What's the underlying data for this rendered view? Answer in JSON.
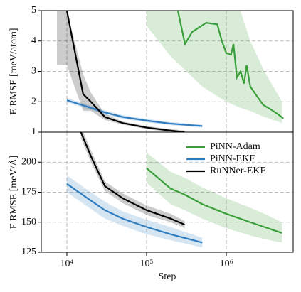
{
  "chart_data": [
    {
      "type": "line",
      "y_label": "E RMSE [meV/atom]",
      "log_x": true,
      "grid": true,
      "xlim": [
        4775,
        6900000
      ],
      "ylim": [
        1,
        5
      ],
      "yticks": [
        1,
        2,
        3,
        4,
        5
      ],
      "series": [
        {
          "color": "#3a9e3a",
          "x": [
            247000,
            303000,
            373000,
            560000,
            770000,
            880000,
            1000000,
            1150000,
            1230000,
            1360000,
            1510000,
            1670000,
            1800000,
            2000000,
            2400000,
            2900000,
            3600000,
            4400000,
            5200000
          ],
          "values": [
            5.0,
            3.9,
            4.3,
            4.6,
            4.55,
            4.0,
            3.6,
            3.55,
            3.9,
            2.8,
            3.0,
            2.6,
            3.2,
            2.5,
            2.2,
            1.9,
            1.75,
            1.6,
            1.45
          ],
          "band": {
            "x": [
              100000,
              200000,
              500000,
              1000000,
              1500000,
              2000000,
              3000000,
              5000000
            ],
            "lower": [
              4.5,
              3.5,
              2.5,
              2.0,
              1.8,
              1.7,
              1.5,
              1.3
            ],
            "upper": [
              5.0,
              5.0,
              5.0,
              5.0,
              5.0,
              4.0,
              3.0,
              2.0
            ]
          }
        },
        {
          "color": "#2f7dc0",
          "x": [
            10000,
            20000,
            30000,
            50000,
            100000,
            200000,
            500000
          ],
          "values": [
            2.05,
            1.8,
            1.65,
            1.5,
            1.38,
            1.28,
            1.2
          ],
          "band": {
            "x": [
              10000,
              20000,
              30000,
              50000,
              100000,
              200000,
              500000
            ],
            "lower": [
              1.98,
              1.73,
              1.58,
              1.44,
              1.32,
              1.23,
              1.15
            ],
            "upper": [
              2.12,
              1.87,
              1.72,
              1.56,
              1.44,
              1.33,
              1.25
            ]
          }
        },
        {
          "color": "#000000",
          "x": [
            10000,
            16000,
            20000,
            30000,
            50000,
            100000,
            200000,
            300000
          ],
          "values": [
            5.0,
            2.25,
            2.0,
            1.5,
            1.3,
            1.15,
            1.05,
            1.0
          ],
          "band": {
            "x": [
              7500,
              10000,
              16000,
              20000,
              30000,
              50000,
              100000,
              200000,
              300000
            ],
            "lower": [
              3.2,
              3.2,
              1.7,
              1.7,
              1.4,
              1.25,
              1.1,
              1.0,
              0.95
            ],
            "upper": [
              5.0,
              5.0,
              2.9,
              2.3,
              1.6,
              1.35,
              1.2,
              1.1,
              1.05
            ]
          }
        }
      ]
    },
    {
      "type": "line",
      "y_label": "F RMSE [meV/Å]",
      "x_label": "Step",
      "log_x": true,
      "grid": true,
      "legend": "upper right",
      "xlim": [
        4775,
        6900000
      ],
      "ylim": [
        125,
        225
      ],
      "xticks": [
        {
          "value": 10000,
          "label": "10⁴"
        },
        {
          "value": 100000,
          "label": "10⁵"
        },
        {
          "value": 1000000,
          "label": "10⁶"
        }
      ],
      "yticks": [
        125,
        150,
        175,
        200
      ],
      "series": [
        {
          "name": "PiNN-Adam",
          "color": "#3a9e3a",
          "x": [
            100000,
            200000,
            300000,
            500000,
            1000000,
            2000000,
            3000000,
            5000000
          ],
          "values": [
            195,
            178,
            173,
            165,
            157,
            150,
            146,
            141
          ],
          "band": {
            "x": [
              100000,
              200000,
              300000,
              500000,
              1000000,
              2000000,
              3000000,
              5000000
            ],
            "lower": [
              183,
              165,
              160,
              153,
              145,
              139,
              136,
              133
            ],
            "upper": [
              208,
              192,
              187,
              179,
              170,
              162,
              157,
              150
            ]
          }
        },
        {
          "name": "PiNN-EKF",
          "color": "#2f7dc0",
          "x": [
            10000,
            20000,
            30000,
            50000,
            100000,
            200000,
            500000
          ],
          "values": [
            182,
            168,
            160,
            153,
            146,
            140,
            133
          ],
          "band": {
            "x": [
              10000,
              20000,
              30000,
              50000,
              100000,
              200000,
              500000
            ],
            "lower": [
              175,
              161,
              153,
              147,
              140,
              135,
              129
            ],
            "upper": [
              189,
              175,
              167,
              159,
              152,
              146,
              137
            ]
          }
        },
        {
          "name": "RuNNer-EKF",
          "color": "#000000",
          "x": [
            15000,
            20000,
            30000,
            50000,
            100000,
            200000,
            300000
          ],
          "values": [
            225,
            205,
            180,
            170,
            160,
            153,
            148
          ],
          "band": {
            "x": [
              15000,
              20000,
              30000,
              50000,
              100000,
              200000,
              300000
            ],
            "lower": [
              220,
              200,
              176,
              166,
              156,
              150,
              145
            ],
            "upper": [
              230,
              210,
              184,
              174,
              164,
              157,
              151
            ]
          }
        }
      ]
    }
  ]
}
